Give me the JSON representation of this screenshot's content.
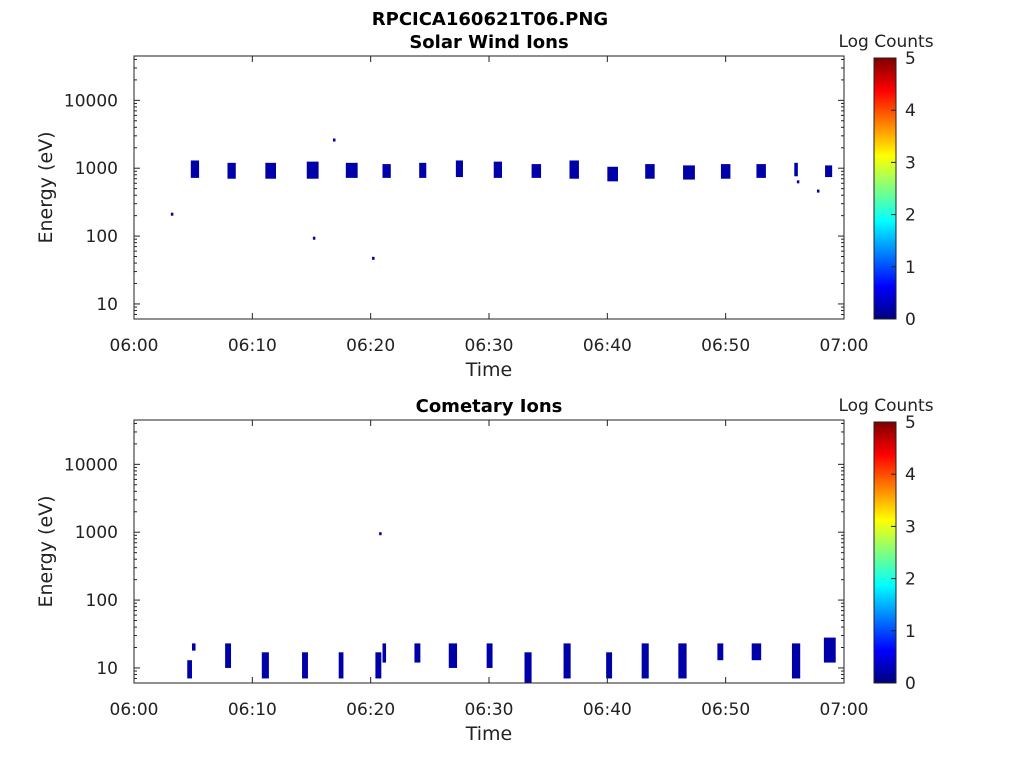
{
  "figure_title": "RPCICA160621T06.PNG",
  "colors": {
    "cmap": [
      "#00007f",
      "#0000ff",
      "#007fff",
      "#00ffff",
      "#7fff7f",
      "#ffff00",
      "#ff7f00",
      "#ff0000",
      "#7f0000"
    ],
    "mark": "#0000a8"
  },
  "chart_data": [
    {
      "type": "heatmap",
      "title": "Solar Wind Ions",
      "xlabel": "Time",
      "ylabel": "Energy (eV)",
      "x_ticks": [
        "06:00",
        "06:10",
        "06:20",
        "06:30",
        "06:40",
        "06:50",
        "07:00"
      ],
      "xlim_min": [
        0,
        60
      ],
      "y_ticks": [
        "10",
        "100",
        "1000",
        "10000"
      ],
      "y_scale": "log",
      "ylim": [
        6,
        45000
      ],
      "colorbar": {
        "label": "Log Counts",
        "ticks": [
          "0",
          "1",
          "2",
          "3",
          "4",
          "5"
        ],
        "range": [
          0,
          5
        ]
      },
      "blocks": [
        {
          "t": 4.8,
          "dt": 0.7,
          "e_lo": 720,
          "e_hi": 1300
        },
        {
          "t": 7.9,
          "dt": 0.7,
          "e_lo": 700,
          "e_hi": 1200
        },
        {
          "t": 11.1,
          "dt": 0.9,
          "e_lo": 700,
          "e_hi": 1200
        },
        {
          "t": 14.6,
          "dt": 1.0,
          "e_lo": 700,
          "e_hi": 1250
        },
        {
          "t": 17.9,
          "dt": 1.0,
          "e_lo": 720,
          "e_hi": 1200
        },
        {
          "t": 21.0,
          "dt": 0.7,
          "e_lo": 720,
          "e_hi": 1150
        },
        {
          "t": 24.1,
          "dt": 0.6,
          "e_lo": 720,
          "e_hi": 1200
        },
        {
          "t": 27.2,
          "dt": 0.6,
          "e_lo": 740,
          "e_hi": 1300
        },
        {
          "t": 30.4,
          "dt": 0.7,
          "e_lo": 720,
          "e_hi": 1250
        },
        {
          "t": 33.6,
          "dt": 0.8,
          "e_lo": 720,
          "e_hi": 1150
        },
        {
          "t": 36.8,
          "dt": 0.8,
          "e_lo": 700,
          "e_hi": 1300
        },
        {
          "t": 40.0,
          "dt": 0.9,
          "e_lo": 640,
          "e_hi": 1050
        },
        {
          "t": 43.2,
          "dt": 0.8,
          "e_lo": 700,
          "e_hi": 1150
        },
        {
          "t": 46.4,
          "dt": 1.0,
          "e_lo": 680,
          "e_hi": 1100
        },
        {
          "t": 49.6,
          "dt": 0.8,
          "e_lo": 700,
          "e_hi": 1150
        },
        {
          "t": 52.6,
          "dt": 0.8,
          "e_lo": 720,
          "e_hi": 1150
        },
        {
          "t": 55.8,
          "dt": 0.3,
          "e_lo": 760,
          "e_hi": 1200
        },
        {
          "t": 58.4,
          "dt": 0.6,
          "e_lo": 740,
          "e_hi": 1100
        }
      ],
      "points": [
        {
          "t": 3.2,
          "e": 210
        },
        {
          "t": 15.2,
          "e": 93
        },
        {
          "t": 16.9,
          "e": 2600
        },
        {
          "t": 20.2,
          "e": 47
        },
        {
          "t": 56.1,
          "e": 630
        },
        {
          "t": 57.8,
          "e": 460
        }
      ]
    },
    {
      "type": "heatmap",
      "title": "Cometary Ions",
      "xlabel": "Time",
      "ylabel": "Energy (eV)",
      "x_ticks": [
        "06:00",
        "06:10",
        "06:20",
        "06:30",
        "06:40",
        "06:50",
        "07:00"
      ],
      "xlim_min": [
        0,
        60
      ],
      "y_ticks": [
        "10",
        "100",
        "1000",
        "10000"
      ],
      "y_scale": "log",
      "ylim": [
        6,
        45000
      ],
      "colorbar": {
        "label": "Log Counts",
        "ticks": [
          "0",
          "1",
          "2",
          "3",
          "4",
          "5"
        ],
        "range": [
          0,
          5
        ]
      },
      "blocks": [
        {
          "t": 4.5,
          "dt": 0.4,
          "e_lo": 7,
          "e_hi": 13
        },
        {
          "t": 4.9,
          "dt": 0.3,
          "e_lo": 18,
          "e_hi": 23
        },
        {
          "t": 7.7,
          "dt": 0.5,
          "e_lo": 10,
          "e_hi": 23
        },
        {
          "t": 10.8,
          "dt": 0.6,
          "e_lo": 7,
          "e_hi": 17
        },
        {
          "t": 14.2,
          "dt": 0.5,
          "e_lo": 7,
          "e_hi": 17
        },
        {
          "t": 17.3,
          "dt": 0.4,
          "e_lo": 7,
          "e_hi": 17
        },
        {
          "t": 20.4,
          "dt": 0.5,
          "e_lo": 7,
          "e_hi": 17
        },
        {
          "t": 21.0,
          "dt": 0.3,
          "e_lo": 12,
          "e_hi": 23
        },
        {
          "t": 23.7,
          "dt": 0.5,
          "e_lo": 12,
          "e_hi": 23
        },
        {
          "t": 26.6,
          "dt": 0.7,
          "e_lo": 10,
          "e_hi": 23
        },
        {
          "t": 29.8,
          "dt": 0.5,
          "e_lo": 10,
          "e_hi": 23
        },
        {
          "t": 33.0,
          "dt": 0.6,
          "e_lo": 6,
          "e_hi": 17
        },
        {
          "t": 36.3,
          "dt": 0.6,
          "e_lo": 7,
          "e_hi": 23
        },
        {
          "t": 39.9,
          "dt": 0.5,
          "e_lo": 7,
          "e_hi": 17
        },
        {
          "t": 42.9,
          "dt": 0.6,
          "e_lo": 7,
          "e_hi": 23
        },
        {
          "t": 46.0,
          "dt": 0.7,
          "e_lo": 7,
          "e_hi": 23
        },
        {
          "t": 49.3,
          "dt": 0.5,
          "e_lo": 13,
          "e_hi": 23
        },
        {
          "t": 52.2,
          "dt": 0.8,
          "e_lo": 13,
          "e_hi": 23
        },
        {
          "t": 55.6,
          "dt": 0.7,
          "e_lo": 7,
          "e_hi": 23
        },
        {
          "t": 58.3,
          "dt": 1.0,
          "e_lo": 12,
          "e_hi": 28
        }
      ],
      "points": [
        {
          "t": 20.8,
          "e": 950
        }
      ]
    }
  ]
}
